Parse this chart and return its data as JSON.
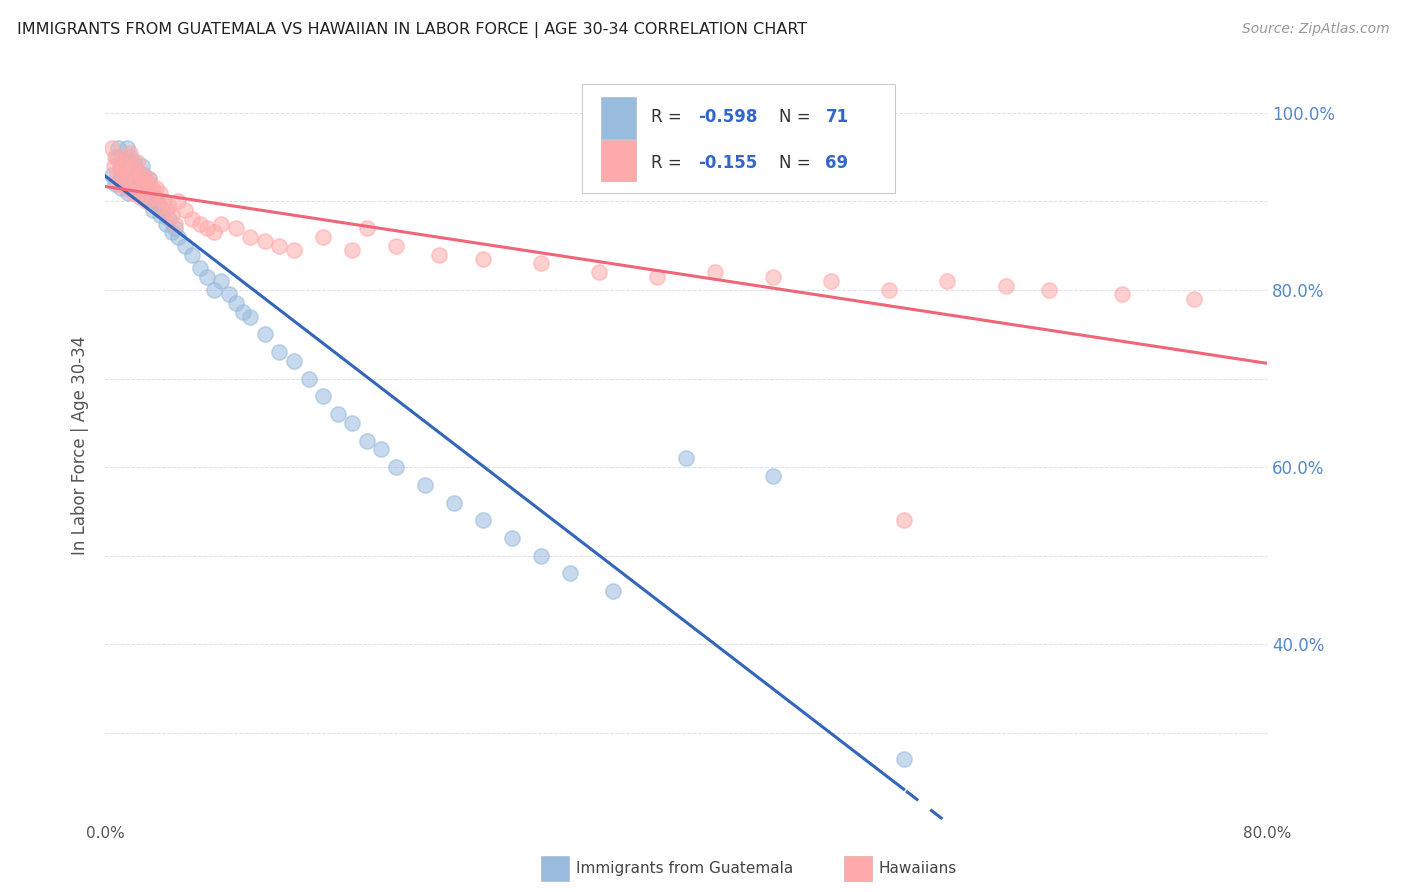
{
  "title": "IMMIGRANTS FROM GUATEMALA VS HAWAIIAN IN LABOR FORCE | AGE 30-34 CORRELATION CHART",
  "source": "Source: ZipAtlas.com",
  "ylabel": "In Labor Force | Age 30-34",
  "xmin": 0.0,
  "xmax": 0.8,
  "ymin": 0.2,
  "ymax": 1.05,
  "legend_r1": "R = -0.598",
  "legend_n1": "N = 71",
  "legend_r2": "R = -0.155",
  "legend_n2": "N = 69",
  "color_blue": "#99BBDD",
  "color_pink": "#FFAAAA",
  "color_blue_line": "#3366BB",
  "color_pink_line": "#EE6677",
  "background_color": "#FFFFFF",
  "grid_color": "#DDDDEE",
  "guatemala_x": [
    0.005,
    0.007,
    0.008,
    0.009,
    0.01,
    0.01,
    0.011,
    0.012,
    0.013,
    0.014,
    0.015,
    0.015,
    0.016,
    0.017,
    0.018,
    0.019,
    0.02,
    0.02,
    0.021,
    0.022,
    0.023,
    0.024,
    0.025,
    0.026,
    0.027,
    0.028,
    0.029,
    0.03,
    0.031,
    0.032,
    0.033,
    0.034,
    0.035,
    0.036,
    0.038,
    0.04,
    0.042,
    0.044,
    0.046,
    0.048,
    0.05,
    0.055,
    0.06,
    0.065,
    0.07,
    0.075,
    0.08,
    0.085,
    0.09,
    0.095,
    0.1,
    0.11,
    0.12,
    0.13,
    0.14,
    0.15,
    0.16,
    0.17,
    0.18,
    0.19,
    0.2,
    0.22,
    0.24,
    0.26,
    0.28,
    0.3,
    0.32,
    0.35,
    0.4,
    0.46,
    0.55
  ],
  "guatemala_y": [
    0.93,
    0.92,
    0.95,
    0.96,
    0.94,
    0.925,
    0.915,
    0.935,
    0.945,
    0.93,
    0.92,
    0.96,
    0.91,
    0.95,
    0.94,
    0.925,
    0.93,
    0.945,
    0.915,
    0.935,
    0.925,
    0.91,
    0.94,
    0.92,
    0.93,
    0.905,
    0.915,
    0.925,
    0.91,
    0.9,
    0.89,
    0.905,
    0.895,
    0.9,
    0.885,
    0.89,
    0.875,
    0.88,
    0.865,
    0.87,
    0.86,
    0.85,
    0.84,
    0.825,
    0.815,
    0.8,
    0.81,
    0.795,
    0.785,
    0.775,
    0.77,
    0.75,
    0.73,
    0.72,
    0.7,
    0.68,
    0.66,
    0.65,
    0.63,
    0.62,
    0.6,
    0.58,
    0.56,
    0.54,
    0.52,
    0.5,
    0.48,
    0.46,
    0.61,
    0.59,
    0.27
  ],
  "hawaii_x": [
    0.005,
    0.006,
    0.007,
    0.008,
    0.009,
    0.01,
    0.011,
    0.012,
    0.013,
    0.014,
    0.015,
    0.016,
    0.017,
    0.018,
    0.019,
    0.02,
    0.021,
    0.022,
    0.023,
    0.024,
    0.025,
    0.026,
    0.027,
    0.028,
    0.03,
    0.032,
    0.034,
    0.036,
    0.038,
    0.04,
    0.042,
    0.044,
    0.046,
    0.048,
    0.05,
    0.055,
    0.06,
    0.065,
    0.07,
    0.075,
    0.08,
    0.09,
    0.1,
    0.11,
    0.12,
    0.13,
    0.15,
    0.17,
    0.2,
    0.23,
    0.26,
    0.3,
    0.34,
    0.38,
    0.42,
    0.46,
    0.5,
    0.54,
    0.58,
    0.62,
    0.65,
    0.7,
    0.75,
    0.02,
    0.025,
    0.03,
    0.035,
    0.18,
    0.55
  ],
  "hawaii_y": [
    0.96,
    0.94,
    0.95,
    0.93,
    0.92,
    0.945,
    0.935,
    0.925,
    0.94,
    0.915,
    0.95,
    0.93,
    0.955,
    0.92,
    0.91,
    0.935,
    0.925,
    0.945,
    0.915,
    0.905,
    0.93,
    0.92,
    0.91,
    0.9,
    0.925,
    0.915,
    0.905,
    0.895,
    0.91,
    0.9,
    0.89,
    0.895,
    0.885,
    0.875,
    0.9,
    0.89,
    0.88,
    0.875,
    0.87,
    0.865,
    0.875,
    0.87,
    0.86,
    0.855,
    0.85,
    0.845,
    0.86,
    0.845,
    0.85,
    0.84,
    0.835,
    0.83,
    0.82,
    0.815,
    0.82,
    0.815,
    0.81,
    0.8,
    0.81,
    0.805,
    0.8,
    0.795,
    0.79,
    0.94,
    0.93,
    0.92,
    0.915,
    0.87,
    0.54
  ],
  "right_yticks": [
    0.4,
    0.6,
    0.8,
    1.0
  ],
  "right_ytick_labels": [
    "40.0%",
    "60.0%",
    "80.0%",
    "100.0%"
  ]
}
